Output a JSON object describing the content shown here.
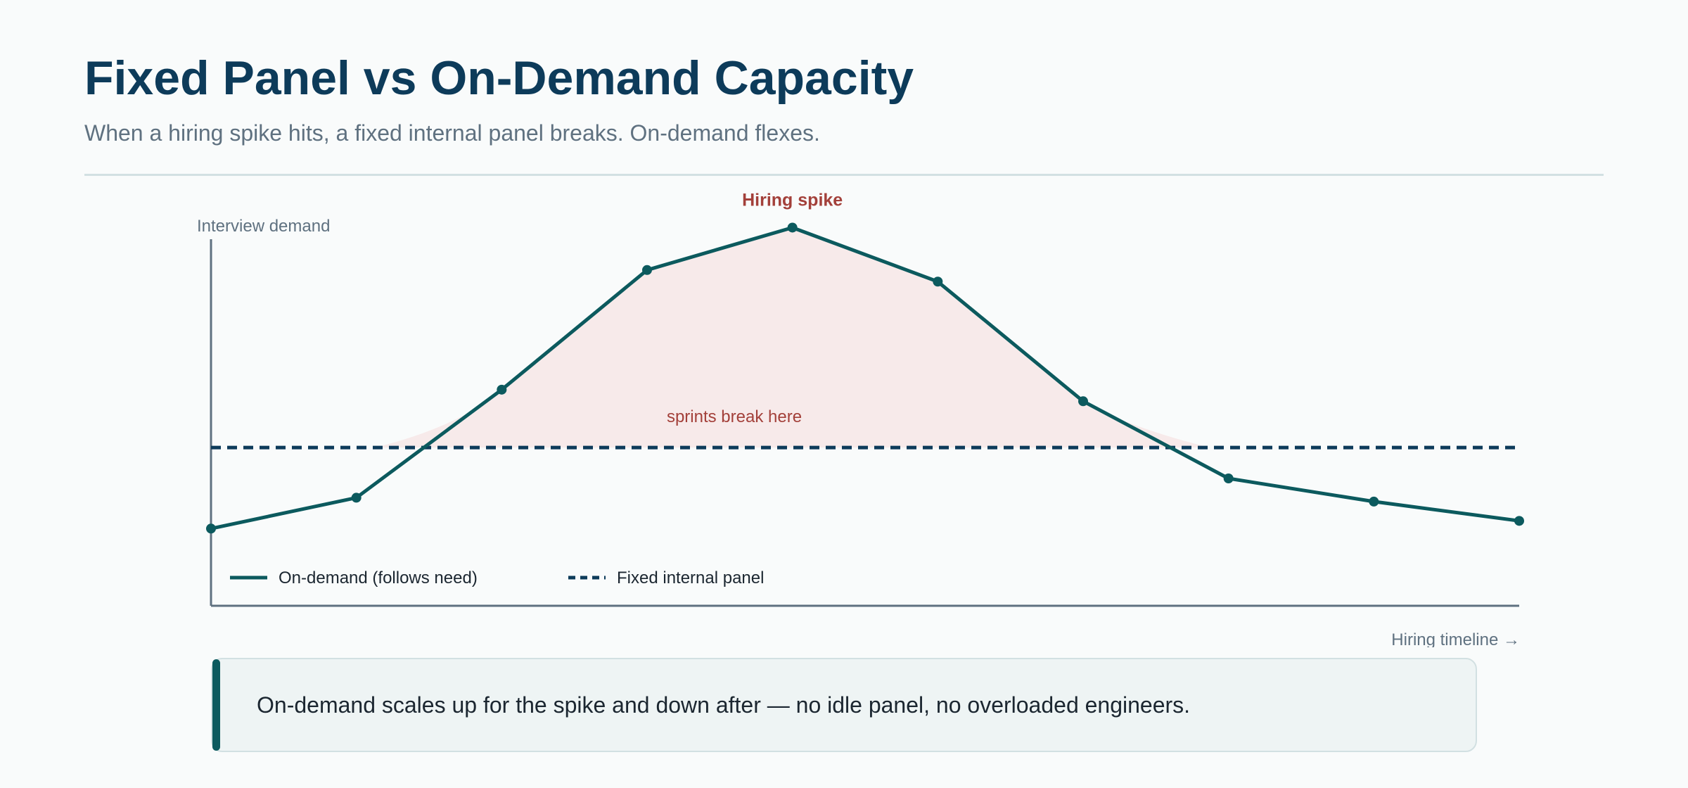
{
  "header": {
    "title": "Fixed Panel vs On-Demand Capacity",
    "subtitle": "When a hiring spike hits, a fixed internal panel breaks. On-demand flexes."
  },
  "chart_data": {
    "type": "line",
    "title": "Fixed Panel vs On-Demand Capacity",
    "ylabel": "Interview demand",
    "xlabel": "Hiring timeline →",
    "x": [
      1,
      2,
      3,
      4,
      5,
      6,
      7,
      8,
      9,
      10
    ],
    "ylim": [
      0,
      100
    ],
    "grid": false,
    "legend_position": "bottom-left",
    "series": [
      {
        "name": "On-demand (follows need)",
        "style": "solid",
        "color": "#0c5a5e",
        "values": [
          20,
          28,
          56,
          87,
          98,
          84,
          53,
          33,
          27,
          22
        ]
      },
      {
        "name": "Fixed internal panel",
        "style": "dashed",
        "color": "#0d3b5a",
        "values": [
          41,
          41,
          41,
          41,
          41,
          41,
          41,
          41,
          41,
          41
        ]
      }
    ],
    "annotations": [
      {
        "text": "Hiring spike",
        "x": 5,
        "color": "#a3403a"
      },
      {
        "text": "sprints break here",
        "color": "#a3403a"
      }
    ],
    "shaded_region": {
      "description_color": "#f7eaea"
    }
  },
  "callout": {
    "text": "On-demand scales up for the spike and down after — no idle panel, no overloaded engineers."
  },
  "colors": {
    "primary": "#0c5a5e",
    "navy": "#0d3b5a",
    "accent": "#a3403a",
    "muted": "#5f7180",
    "shade": "#f7eaea"
  }
}
